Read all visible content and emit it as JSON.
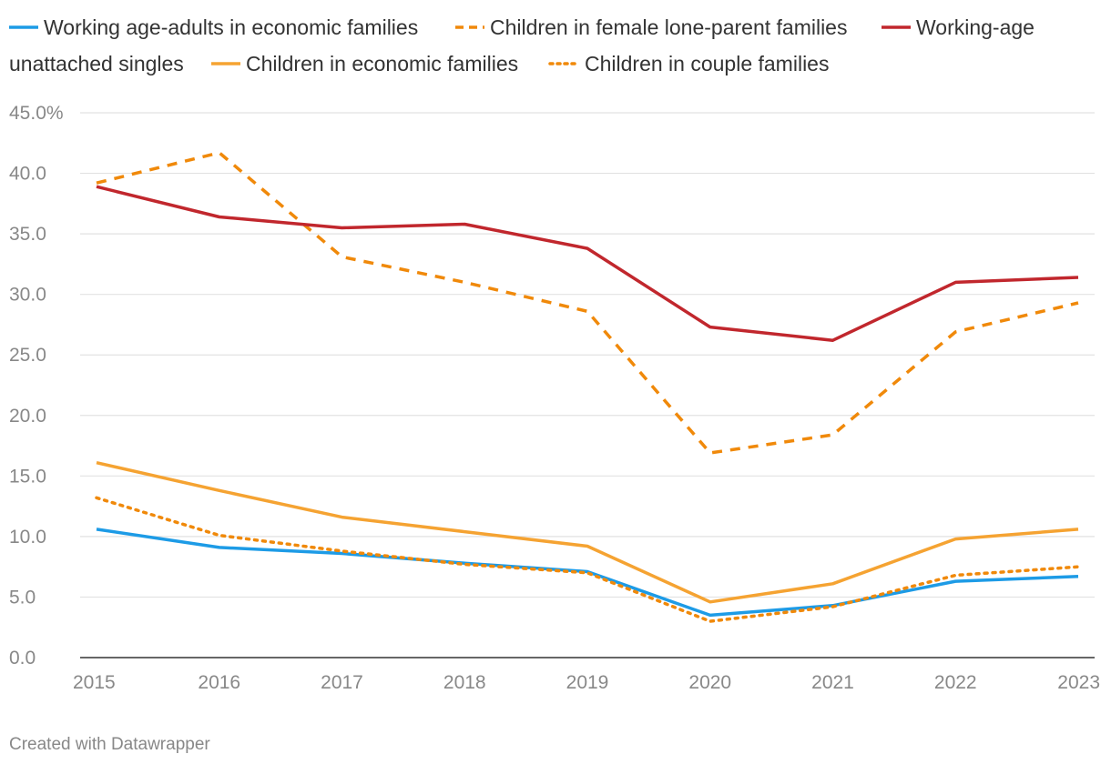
{
  "chart_data": {
    "type": "line",
    "title": "",
    "xlabel": "",
    "ylabel": "",
    "x": [
      2015,
      2016,
      2017,
      2018,
      2019,
      2020,
      2021,
      2022,
      2023
    ],
    "x_tick_labels": [
      "2015",
      "2016",
      "2017",
      "2018",
      "2019",
      "2020",
      "2021",
      "2022",
      "2023"
    ],
    "ylim": [
      0,
      45
    ],
    "y_ticks": [
      0,
      5,
      10,
      15,
      20,
      25,
      30,
      35,
      40,
      45
    ],
    "y_tick_labels": [
      "0.0",
      "5.0",
      "10.0",
      "15.0",
      "20.0",
      "25.0",
      "30.0",
      "35.0",
      "40.0",
      "45.0%"
    ],
    "grid": true,
    "legend_position": "top",
    "series": [
      {
        "name": "Working age-adults in economic families",
        "color": "#1d9be6",
        "dash": "solid",
        "values": [
          10.6,
          9.1,
          8.6,
          7.8,
          7.1,
          3.5,
          4.3,
          6.3,
          6.7
        ]
      },
      {
        "name": "Children in female lone-parent families",
        "color": "#f0890a",
        "dash": "dashed",
        "values": [
          39.2,
          41.7,
          33.1,
          31.0,
          28.6,
          16.9,
          18.4,
          26.9,
          29.3
        ]
      },
      {
        "name": "Working-age unattached singles",
        "color": "#c1272d",
        "dash": "solid",
        "values": [
          38.9,
          36.4,
          35.5,
          35.8,
          33.8,
          27.3,
          26.2,
          31.0,
          31.4
        ]
      },
      {
        "name": "Children in economic families",
        "color": "#f5a332",
        "dash": "solid",
        "values": [
          16.1,
          13.8,
          11.6,
          10.4,
          9.2,
          4.6,
          6.1,
          9.8,
          10.6
        ]
      },
      {
        "name": "Children in couple families",
        "color": "#f0890a",
        "dash": "dotted",
        "values": [
          13.2,
          10.1,
          8.8,
          7.7,
          7.0,
          3.0,
          4.2,
          6.8,
          7.5
        ]
      }
    ]
  },
  "legend": {
    "line1": [
      {
        "label": "Working age-adults in economic families",
        "series_index": 0
      },
      {
        "label": "Children in female lone-parent families",
        "series_index": 1
      },
      {
        "label": "Working-age",
        "series_index": 2
      }
    ],
    "line2_continuation": "unattached singles",
    "line2": [
      {
        "label": "Children in economic families",
        "series_index": 3
      },
      {
        "label": "Children in couple families",
        "series_index": 4
      }
    ]
  },
  "footer": {
    "credit": "Created with Datawrapper"
  },
  "colors": {
    "grid": "#e2e2e2",
    "axis": "#333333",
    "tick_text": "#888888",
    "legend_text": "#333333"
  }
}
